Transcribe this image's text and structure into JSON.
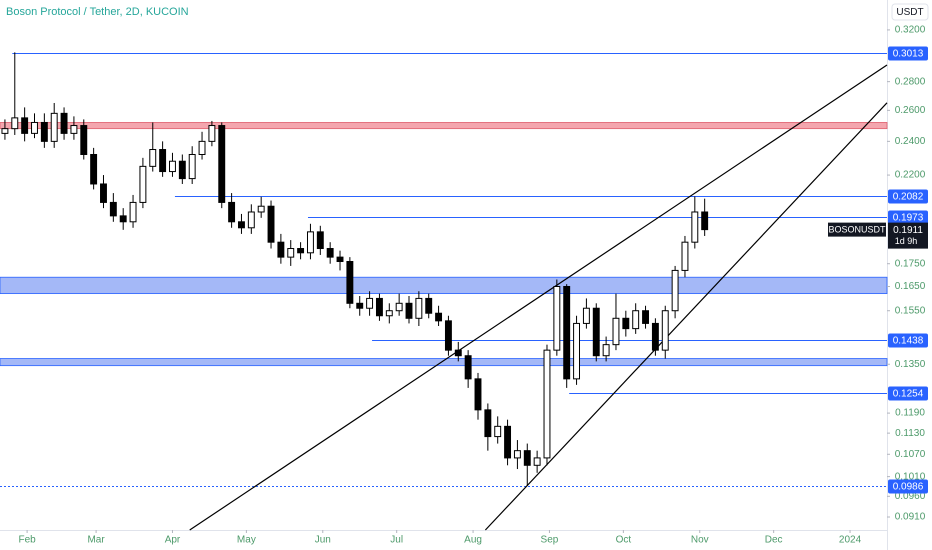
{
  "chart_data": {
    "type": "candlestick",
    "title": "Boson Protocol / Tether, 2D, KUCOIN",
    "currency": "USDT",
    "log_scale": true,
    "xlim": [
      20,
      380
    ],
    "xticks": [
      {
        "value": 31,
        "label": "Feb"
      },
      {
        "value": 59,
        "label": "Mar"
      },
      {
        "value": 90,
        "label": "Apr"
      },
      {
        "value": 120,
        "label": "May"
      },
      {
        "value": 151,
        "label": "Jun"
      },
      {
        "value": 181,
        "label": "Jul"
      },
      {
        "value": 212,
        "label": "Aug"
      },
      {
        "value": 243,
        "label": "Sep"
      },
      {
        "value": 273,
        "label": "Oct"
      },
      {
        "value": 304,
        "label": "Nov"
      },
      {
        "value": 334,
        "label": "Dec"
      },
      {
        "value": 365,
        "label": "2024"
      }
    ],
    "ylim": [
      0.088,
      0.3457
    ],
    "yticks": [
      {
        "value": 0.32,
        "label": "0.3200"
      },
      {
        "value": 0.28,
        "label": "0.2800"
      },
      {
        "value": 0.26,
        "label": "0.2600"
      },
      {
        "value": 0.24,
        "label": "0.2400"
      },
      {
        "value": 0.22,
        "label": "0.2200"
      },
      {
        "value": 0.175,
        "label": "0.1750"
      },
      {
        "value": 0.165,
        "label": "0.1650"
      },
      {
        "value": 0.155,
        "label": "0.1550"
      },
      {
        "value": 0.135,
        "label": "0.1350"
      },
      {
        "value": 0.119,
        "label": "0.1190"
      },
      {
        "value": 0.113,
        "label": "0.1130"
      },
      {
        "value": 0.107,
        "label": "0.1070"
      },
      {
        "value": 0.101,
        "label": "0.1010"
      },
      {
        "value": 0.096,
        "label": "0.0960"
      },
      {
        "value": 0.091,
        "label": "0.0910"
      }
    ],
    "up_color": "#ffffff",
    "down_color": "#000000",
    "x": [
      22,
      26,
      30,
      34,
      38,
      42,
      46,
      50,
      54,
      58,
      62,
      66,
      70,
      74,
      78,
      82,
      86,
      90,
      94,
      98,
      102,
      106,
      110,
      114,
      118,
      122,
      126,
      130,
      134,
      138,
      142,
      146,
      150,
      154,
      158,
      162,
      166,
      170,
      174,
      178,
      182,
      186,
      190,
      194,
      198,
      202,
      206,
      210,
      214,
      218,
      222,
      226,
      230,
      234,
      238,
      242,
      246,
      250,
      254,
      258,
      262,
      266,
      270,
      274,
      278,
      282,
      286,
      290,
      294,
      298,
      302,
      306
    ],
    "open": [
      0.245,
      0.248,
      0.255,
      0.245,
      0.252,
      0.24,
      0.258,
      0.245,
      0.25,
      0.232,
      0.215,
      0.205,
      0.198,
      0.195,
      0.205,
      0.225,
      0.235,
      0.222,
      0.228,
      0.218,
      0.232,
      0.24,
      0.25,
      0.205,
      0.195,
      0.192,
      0.2,
      0.203,
      0.185,
      0.178,
      0.182,
      0.18,
      0.19,
      0.182,
      0.178,
      0.176,
      0.158,
      0.156,
      0.16,
      0.153,
      0.155,
      0.158,
      0.152,
      0.16,
      0.154,
      0.151,
      0.14,
      0.138,
      0.13,
      0.12,
      0.112,
      0.115,
      0.106,
      0.108,
      0.104,
      0.106,
      0.14,
      0.165,
      0.13,
      0.15,
      0.156,
      0.138,
      0.142,
      0.152,
      0.148,
      0.155,
      0.15,
      0.14,
      0.155,
      0.172,
      0.185,
      0.2
    ],
    "high": [
      0.254,
      0.302,
      0.262,
      0.258,
      0.258,
      0.265,
      0.262,
      0.256,
      0.254,
      0.236,
      0.22,
      0.21,
      0.202,
      0.209,
      0.23,
      0.252,
      0.24,
      0.233,
      0.232,
      0.237,
      0.246,
      0.253,
      0.252,
      0.21,
      0.199,
      0.204,
      0.208,
      0.206,
      0.189,
      0.186,
      0.185,
      0.194,
      0.193,
      0.185,
      0.181,
      0.178,
      0.161,
      0.163,
      0.162,
      0.158,
      0.162,
      0.161,
      0.163,
      0.162,
      0.157,
      0.153,
      0.143,
      0.14,
      0.132,
      0.122,
      0.118,
      0.117,
      0.111,
      0.11,
      0.108,
      0.142,
      0.168,
      0.166,
      0.153,
      0.16,
      0.158,
      0.145,
      0.162,
      0.155,
      0.158,
      0.157,
      0.152,
      0.157,
      0.174,
      0.188,
      0.2082,
      0.207
    ],
    "low": [
      0.241,
      0.244,
      0.24,
      0.242,
      0.236,
      0.236,
      0.241,
      0.241,
      0.229,
      0.212,
      0.202,
      0.195,
      0.191,
      0.192,
      0.202,
      0.222,
      0.219,
      0.219,
      0.215,
      0.215,
      0.229,
      0.237,
      0.202,
      0.192,
      0.189,
      0.189,
      0.197,
      0.182,
      0.175,
      0.174,
      0.177,
      0.177,
      0.179,
      0.175,
      0.172,
      0.156,
      0.153,
      0.153,
      0.151,
      0.15,
      0.153,
      0.15,
      0.149,
      0.152,
      0.149,
      0.138,
      0.136,
      0.127,
      0.117,
      0.108,
      0.11,
      0.104,
      0.103,
      0.0986,
      0.102,
      0.104,
      0.138,
      0.127,
      0.128,
      0.148,
      0.136,
      0.136,
      0.14,
      0.145,
      0.146,
      0.148,
      0.138,
      0.137,
      0.152,
      0.169,
      0.182,
      0.188
    ],
    "close": [
      0.248,
      0.255,
      0.245,
      0.252,
      0.24,
      0.258,
      0.245,
      0.25,
      0.232,
      0.215,
      0.205,
      0.198,
      0.195,
      0.205,
      0.225,
      0.235,
      0.222,
      0.228,
      0.218,
      0.232,
      0.24,
      0.25,
      0.205,
      0.195,
      0.192,
      0.2,
      0.203,
      0.185,
      0.178,
      0.182,
      0.18,
      0.19,
      0.182,
      0.178,
      0.176,
      0.158,
      0.156,
      0.16,
      0.153,
      0.155,
      0.158,
      0.152,
      0.16,
      0.154,
      0.151,
      0.14,
      0.138,
      0.13,
      0.12,
      0.112,
      0.115,
      0.106,
      0.108,
      0.104,
      0.106,
      0.14,
      0.165,
      0.13,
      0.15,
      0.156,
      0.138,
      0.142,
      0.152,
      0.148,
      0.155,
      0.15,
      0.14,
      0.155,
      0.172,
      0.185,
      0.2,
      0.1911
    ],
    "zones": [
      {
        "low": 0.248,
        "high": 0.252,
        "color": "#f4a6ae"
      },
      {
        "low": 0.162,
        "high": 0.169,
        "color": "#a4b8f7"
      },
      {
        "low": 0.1345,
        "high": 0.137,
        "color": "#a4b8f7"
      }
    ],
    "levels": [
      {
        "value": 0.3013,
        "start": 25
      },
      {
        "value": 0.2082,
        "start": 91
      },
      {
        "value": 0.1973,
        "start": 145
      },
      {
        "value": 0.1438,
        "start": 171
      },
      {
        "value": 0.1254,
        "start": 251
      },
      {
        "value": 0.0986,
        "start": 20
      }
    ],
    "level_color": "#2962ff",
    "trendlines": [
      {
        "x": [
          97,
          380
        ],
        "y": [
          0.088,
          0.2923
        ]
      },
      {
        "x": [
          217,
          380
        ],
        "y": [
          0.088,
          0.2651
        ]
      }
    ],
    "symbol": "BOSONUSDT",
    "last_price": 0.1911,
    "countdown": "1d 9h"
  }
}
